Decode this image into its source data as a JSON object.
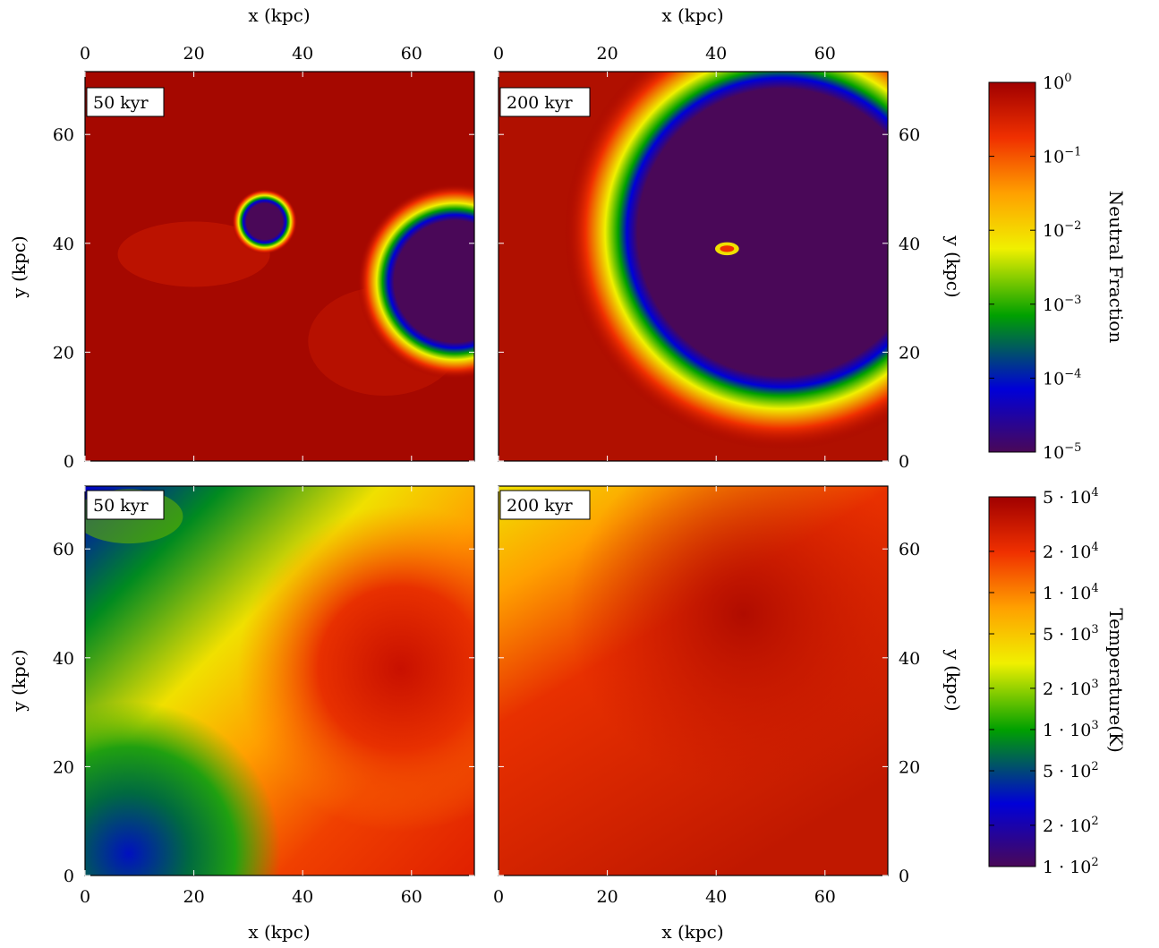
{
  "chart_data": [
    {
      "type": "heatmap",
      "panel": "top-left",
      "label": "50 kyr",
      "quantity": "Neutral Fraction",
      "xlabel": "x (kpc)",
      "ylabel": "y (kpc)",
      "xlim": [
        0,
        71.5
      ],
      "ylim": [
        0,
        71.5
      ],
      "xticks": [
        "0",
        "20",
        "40",
        "60"
      ],
      "yticks": [
        "0",
        "20",
        "40",
        "60"
      ],
      "features": [
        {
          "kind": "ionized-region",
          "center_kpc": [
            33,
            44
          ],
          "radius_kpc": 3.5
        },
        {
          "kind": "ionized-region",
          "center_kpc": [
            67,
            33
          ],
          "radius_kpc": 11
        }
      ],
      "background": "neutral (~1)"
    },
    {
      "type": "heatmap",
      "panel": "top-right",
      "label": "200 kyr",
      "quantity": "Neutral Fraction",
      "xlabel": "x (kpc)",
      "ylabel": "y (kpc)",
      "xlim": [
        0,
        71.5
      ],
      "ylim": [
        0,
        71.5
      ],
      "xticks": [
        "0",
        "20",
        "40",
        "60"
      ],
      "yticks": [
        "0",
        "20",
        "40",
        "60"
      ],
      "features": [
        {
          "kind": "ionized-region",
          "center_kpc": [
            50,
            40
          ],
          "radius_kpc": 25
        }
      ],
      "background": "neutral (~1)"
    },
    {
      "type": "heatmap",
      "panel": "bottom-left",
      "label": "50 kyr",
      "quantity": "Temperature(K)",
      "xlabel": "x (kpc)",
      "ylabel": "y (kpc)",
      "xlim": [
        0,
        71.5
      ],
      "ylim": [
        0,
        71.5
      ],
      "xticks": [
        "0",
        "20",
        "40",
        "60"
      ],
      "yticks": [
        "0",
        "20",
        "40",
        "60"
      ],
      "features": [
        {
          "kind": "hot-region",
          "center_kpc": [
            55,
            40
          ],
          "radius_kpc": 30
        },
        {
          "kind": "cold-region",
          "center_kpc": [
            10,
            8
          ],
          "radius_kpc": 20
        }
      ]
    },
    {
      "type": "heatmap",
      "panel": "bottom-right",
      "label": "200 kyr",
      "quantity": "Temperature(K)",
      "xlabel": "x (kpc)",
      "ylabel": "y (kpc)",
      "xlim": [
        0,
        71.5
      ],
      "ylim": [
        0,
        71.5
      ],
      "xticks": [
        "0",
        "20",
        "40",
        "60"
      ],
      "yticks": [
        "0",
        "20",
        "40",
        "60"
      ],
      "features": [
        {
          "kind": "hot-region",
          "center_kpc": [
            40,
            45
          ],
          "radius_kpc": 35
        },
        {
          "kind": "warm-region",
          "center_kpc": [
            10,
            5
          ],
          "radius_kpc": 15
        }
      ]
    }
  ],
  "colorbars": {
    "neutral": {
      "label": "Neutral Fraction",
      "ticks": [
        {
          "base": "10",
          "exp": "0",
          "value": 1
        },
        {
          "base": "10",
          "exp": "−1",
          "value": 0.1
        },
        {
          "base": "10",
          "exp": "−2",
          "value": 0.01
        },
        {
          "base": "10",
          "exp": "−3",
          "value": 0.001
        },
        {
          "base": "10",
          "exp": "−4",
          "value": 0.0001
        },
        {
          "base": "10",
          "exp": "−5",
          "value": 1e-05
        }
      ],
      "scale": "log",
      "range": [
        1e-05,
        1
      ]
    },
    "temperature": {
      "label": "Temperature(K)",
      "ticks": [
        {
          "base": "5 · 10",
          "exp": "4",
          "value": 50000
        },
        {
          "base": "2 · 10",
          "exp": "4",
          "value": 20000
        },
        {
          "base": "1 · 10",
          "exp": "4",
          "value": 10000
        },
        {
          "base": "5 · 10",
          "exp": "3",
          "value": 5000
        },
        {
          "base": "2 · 10",
          "exp": "3",
          "value": 2000
        },
        {
          "base": "1 · 10",
          "exp": "3",
          "value": 1000
        },
        {
          "base": "5 · 10",
          "exp": "2",
          "value": 500
        },
        {
          "base": "2 · 10",
          "exp": "2",
          "value": 200
        },
        {
          "base": "1 · 10",
          "exp": "2",
          "value": 100
        }
      ],
      "scale": "log",
      "range": [
        100,
        50000
      ]
    }
  },
  "colormap": [
    "#4a0858",
    "#0000d8",
    "#00a000",
    "#f0f000",
    "#ffa000",
    "#f03000",
    "#a00000"
  ]
}
